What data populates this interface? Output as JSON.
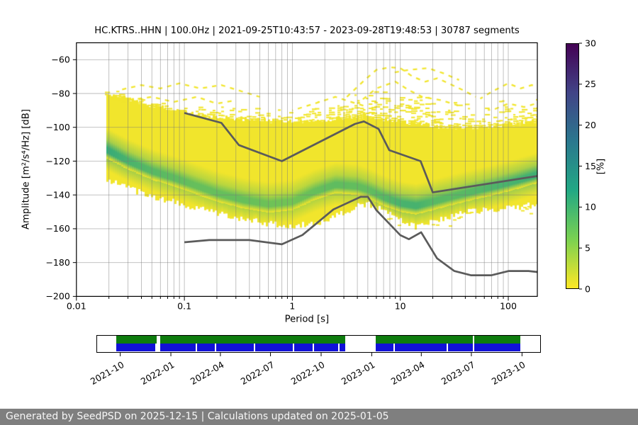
{
  "footer": {
    "text": "Generated by SeedPSD on 2025-12-15 | Calculations updated on 2025-01-05"
  },
  "chart_data": {
    "type": "heatmap",
    "title": "HC.KTRS..HHN | 100.0Hz | 2021-09-25T10:43:57 - 2023-09-28T19:48:53 | 30787 segments",
    "xlabel": "Period [s]",
    "ylabel": "Amplitude [m²/s⁴/Hz] [dB]",
    "x_scale": "log",
    "xlim": [
      0.01,
      186
    ],
    "ylim": [
      -200,
      -50
    ],
    "grid": true,
    "x_ticks": [
      {
        "v": 0.01,
        "label": "0.01"
      },
      {
        "v": 0.1,
        "label": "0.1"
      },
      {
        "v": 1,
        "label": "1"
      },
      {
        "v": 10,
        "label": "10"
      },
      {
        "v": 100,
        "label": "100"
      }
    ],
    "y_ticks": [
      {
        "v": -60,
        "label": "−60"
      },
      {
        "v": -80,
        "label": "−80"
      },
      {
        "v": -100,
        "label": "−100"
      },
      {
        "v": -120,
        "label": "−120"
      },
      {
        "v": -140,
        "label": "−140"
      },
      {
        "v": -160,
        "label": "−160"
      },
      {
        "v": -180,
        "label": "−180"
      },
      {
        "v": -200,
        "label": "−200"
      }
    ],
    "colorbar": {
      "label": "[%]",
      "min": 0,
      "max": 30,
      "ticks": [
        {
          "v": 0,
          "label": "0"
        },
        {
          "v": 5,
          "label": "5"
        },
        {
          "v": 10,
          "label": "10"
        },
        {
          "v": 15,
          "label": "15"
        },
        {
          "v": 20,
          "label": "20"
        },
        {
          "v": 25,
          "label": "25"
        },
        {
          "v": 30,
          "label": "30"
        }
      ],
      "colormap": "viridis reversed (0%=yellow, 30%=dark purple)"
    },
    "noise_models": {
      "color": "#5b5b5b",
      "nhnm": [
        [
          0.1,
          -91.5
        ],
        [
          0.22,
          -97.4
        ],
        [
          0.32,
          -110.5
        ],
        [
          0.8,
          -120.0
        ],
        [
          3.8,
          -98.0
        ],
        [
          4.6,
          -96.5
        ],
        [
          6.3,
          -101.0
        ],
        [
          7.9,
          -113.5
        ],
        [
          15.4,
          -120.0
        ],
        [
          20.0,
          -138.5
        ],
        [
          186,
          -128.8
        ]
      ],
      "nlnm": [
        [
          0.1,
          -168.0
        ],
        [
          0.17,
          -166.7
        ],
        [
          0.4,
          -166.7
        ],
        [
          0.8,
          -169.2
        ],
        [
          1.24,
          -163.7
        ],
        [
          2.4,
          -148.6
        ],
        [
          4.3,
          -141.1
        ],
        [
          5.0,
          -141.1
        ],
        [
          6.0,
          -149.0
        ],
        [
          10.0,
          -163.8
        ],
        [
          12.0,
          -166.2
        ],
        [
          15.6,
          -162.1
        ],
        [
          21.9,
          -177.5
        ],
        [
          31.6,
          -185.0
        ],
        [
          45.0,
          -187.5
        ],
        [
          70.0,
          -187.5
        ],
        [
          101.0,
          -185.0
        ],
        [
          154.0,
          -185.0
        ],
        [
          186,
          -185.6
        ]
      ]
    },
    "ppsd_envelope": {
      "p_min": 0.0185,
      "p_max": 186,
      "base_color": "#f1e52c",
      "green_low_color": "#addc30",
      "green_high_color": "#1fa187",
      "points": [
        {
          "p": 0.0185,
          "top": -80,
          "mode": -113,
          "bot": -131,
          "i": 0.85
        },
        {
          "p": 0.03,
          "top": -83,
          "mode": -120,
          "bot": -136,
          "i": 0.7
        },
        {
          "p": 0.05,
          "top": -87,
          "mode": -126,
          "bot": -141,
          "i": 0.6
        },
        {
          "p": 0.08,
          "top": -90,
          "mode": -130,
          "bot": -144,
          "i": 0.55
        },
        {
          "p": 0.12,
          "top": -92,
          "mode": -134,
          "bot": -147,
          "i": 0.5
        },
        {
          "p": 0.2,
          "top": -94,
          "mode": -139,
          "bot": -151,
          "i": 0.5
        },
        {
          "p": 0.35,
          "top": -95,
          "mode": -143,
          "bot": -154.5,
          "i": 0.5
        },
        {
          "p": 0.6,
          "top": -96,
          "mode": -145.5,
          "bot": -157,
          "i": 0.45
        },
        {
          "p": 1.0,
          "top": -96.5,
          "mode": -144,
          "bot": -158.5,
          "i": 0.42
        },
        {
          "p": 1.6,
          "top": -96,
          "mode": -138,
          "bot": -157,
          "i": 0.5
        },
        {
          "p": 2.5,
          "top": -95,
          "mode": -134,
          "bot": -153,
          "i": 0.55
        },
        {
          "p": 4.0,
          "top": -94,
          "mode": -135,
          "bot": -147,
          "i": 0.52
        },
        {
          "p": 5.0,
          "top": -94,
          "mode": -137,
          "bot": -145.5,
          "i": 0.52
        },
        {
          "p": 7.0,
          "top": -95,
          "mode": -141.5,
          "bot": -149,
          "i": 0.6
        },
        {
          "p": 10,
          "top": -96.5,
          "mode": -145,
          "bot": -155,
          "i": 0.7
        },
        {
          "p": 14,
          "top": -98,
          "mode": -146.5,
          "bot": -159,
          "i": 0.72
        },
        {
          "p": 20,
          "top": -99,
          "mode": -144,
          "bot": -156,
          "i": 0.6
        },
        {
          "p": 30,
          "top": -100,
          "mode": -141,
          "bot": -152,
          "i": 0.58
        },
        {
          "p": 50,
          "top": -100,
          "mode": -137.5,
          "bot": -149.5,
          "i": 0.62
        },
        {
          "p": 80,
          "top": -99,
          "mode": -134.5,
          "bot": -148,
          "i": 0.68
        },
        {
          "p": 120,
          "top": -98,
          "mode": -131.5,
          "bot": -147,
          "i": 0.72
        },
        {
          "p": 186,
          "top": -96,
          "mode": -128,
          "bot": -146,
          "i": 0.78
        }
      ]
    },
    "scatter_band_top": [
      [
        0.0185,
        -75
      ],
      [
        0.03,
        -79
      ],
      [
        0.05,
        -82
      ],
      [
        0.08,
        -84
      ],
      [
        0.12,
        -85
      ],
      [
        0.2,
        -86
      ],
      [
        0.35,
        -88
      ],
      [
        0.6,
        -89
      ],
      [
        1,
        -87
      ],
      [
        2,
        -84
      ],
      [
        3.5,
        -80
      ],
      [
        6,
        -76
      ],
      [
        10,
        -77
      ],
      [
        16,
        -80
      ],
      [
        25,
        -84
      ],
      [
        40,
        -86
      ],
      [
        60,
        -86
      ],
      [
        90,
        -84
      ],
      [
        130,
        -83
      ],
      [
        186,
        -82
      ]
    ],
    "outlier_streaks": [
      [
        [
          3.2,
          -82
        ],
        [
          4.5,
          -73
        ],
        [
          6,
          -66
        ],
        [
          8,
          -64.5
        ],
        [
          10,
          -65
        ],
        [
          13,
          -70
        ],
        [
          17,
          -73
        ],
        [
          22,
          -71
        ],
        [
          28,
          -74
        ],
        [
          38,
          -78
        ],
        [
          50,
          -82
        ]
      ],
      [
        [
          4,
          -86
        ],
        [
          6,
          -77
        ],
        [
          9,
          -73
        ],
        [
          12,
          -78
        ],
        [
          16,
          -82
        ],
        [
          24,
          -84
        ],
        [
          34,
          -87
        ]
      ],
      [
        [
          8,
          -68
        ],
        [
          12,
          -66
        ],
        [
          18,
          -65
        ],
        [
          25,
          -68
        ],
        [
          35,
          -72
        ]
      ],
      [
        [
          0.025,
          -78
        ],
        [
          0.04,
          -75
        ],
        [
          0.06,
          -77
        ],
        [
          0.09,
          -74
        ],
        [
          0.14,
          -77
        ],
        [
          0.22,
          -75
        ],
        [
          0.35,
          -79
        ],
        [
          0.5,
          -82
        ]
      ],
      [
        [
          0.03,
          -84
        ],
        [
          0.05,
          -82
        ],
        [
          0.08,
          -85
        ],
        [
          0.13,
          -82
        ],
        [
          0.2,
          -86
        ],
        [
          0.3,
          -84
        ]
      ],
      [
        [
          55,
          -83
        ],
        [
          75,
          -78
        ],
        [
          100,
          -74
        ],
        [
          130,
          -77
        ],
        [
          165,
          -75
        ],
        [
          186,
          -76
        ]
      ],
      [
        [
          1,
          -90
        ],
        [
          1.6,
          -86
        ],
        [
          2.5,
          -82
        ],
        [
          3.5,
          -85
        ],
        [
          5,
          -88
        ]
      ],
      [
        [
          70,
          -90
        ],
        [
          100,
          -86
        ],
        [
          140,
          -88
        ],
        [
          180,
          -86
        ]
      ]
    ]
  },
  "timeline": {
    "axis_start": "2021-08-20",
    "axis_end": "2023-11-03",
    "green_color": "#0e7c0e",
    "blue_color": "#1111d8",
    "segments": [
      {
        "start": "2021-09-24",
        "end": "2022-11-14"
      },
      {
        "start": "2023-01-08",
        "end": "2023-09-28"
      }
    ],
    "full_gaps": [
      {
        "start": "2021-12-06",
        "end": "2021-12-12"
      }
    ],
    "blue_gap_dates": [
      "2021-12-04",
      "2022-02-15",
      "2022-03-22",
      "2022-06-01",
      "2022-08-11",
      "2022-09-15",
      "2022-11-01",
      "2023-02-09",
      "2023-05-17",
      "2023-07-04"
    ],
    "green_gap_dates": [
      "2023-07-03"
    ],
    "ticks": [
      {
        "date": "2021-10-01",
        "label": "2021-10"
      },
      {
        "date": "2022-01-01",
        "label": "2022-01"
      },
      {
        "date": "2022-04-01",
        "label": "2022-04"
      },
      {
        "date": "2022-07-01",
        "label": "2022-07"
      },
      {
        "date": "2022-10-01",
        "label": "2022-10"
      },
      {
        "date": "2023-01-01",
        "label": "2023-01"
      },
      {
        "date": "2023-04-01",
        "label": "2023-04"
      },
      {
        "date": "2023-07-01",
        "label": "2023-07"
      },
      {
        "date": "2023-10-01",
        "label": "2023-10"
      }
    ]
  }
}
